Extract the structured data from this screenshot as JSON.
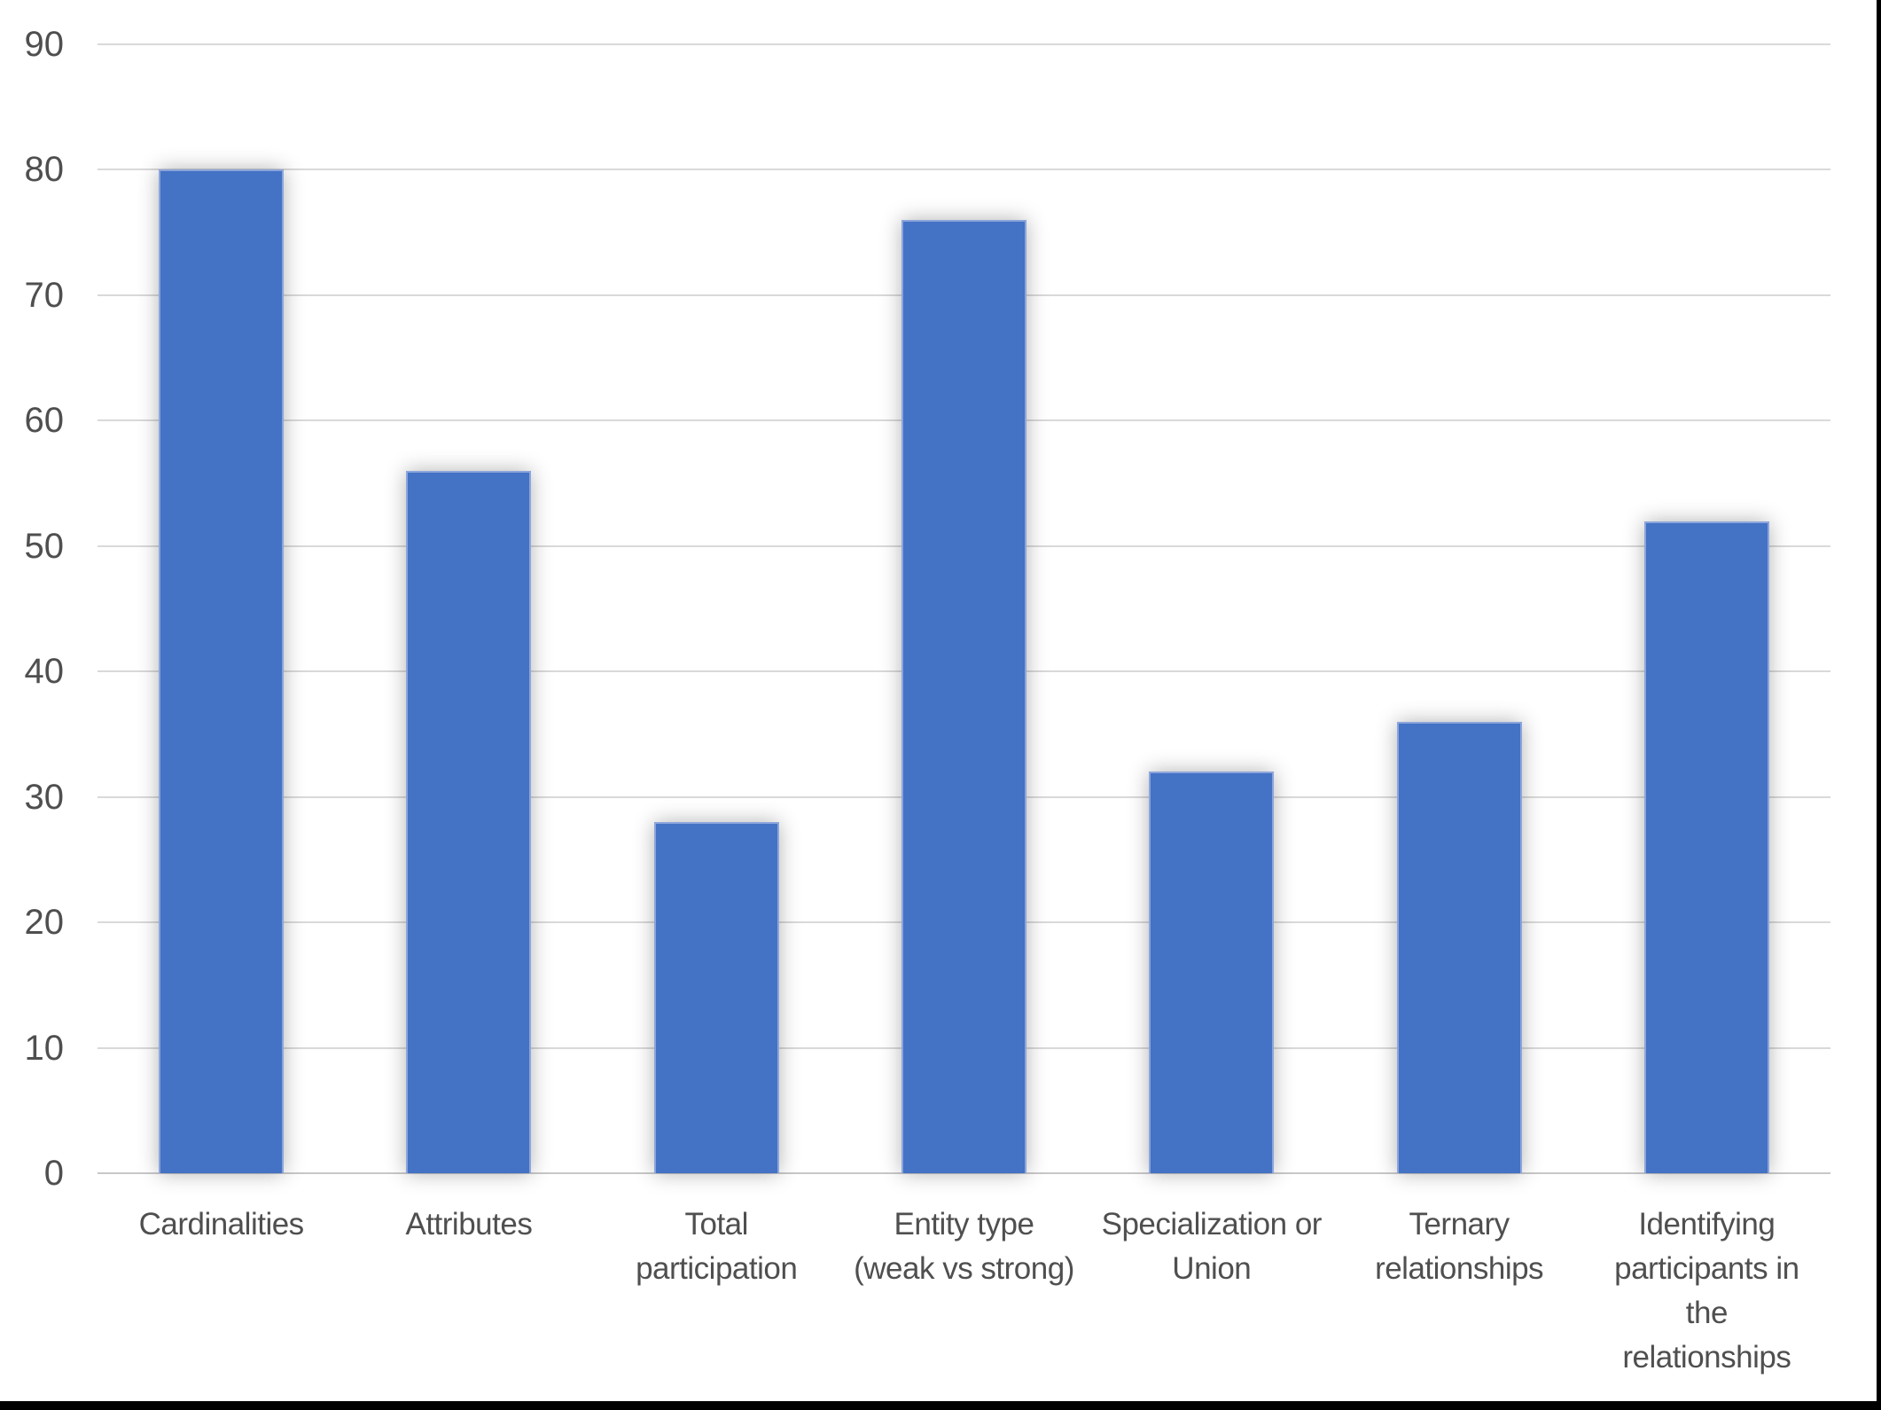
{
  "chart_data": {
    "type": "bar",
    "title": "",
    "xlabel": "",
    "ylabel": "",
    "categories": [
      "Cardinalities",
      "Attributes",
      "Total participation",
      "Entity type (weak vs strong)",
      "Specialization or Union",
      "Ternary relationships",
      "Identifying participants in the relationships"
    ],
    "category_lines": [
      [
        "Cardinalities"
      ],
      [
        "Attributes"
      ],
      [
        "Total",
        "participation"
      ],
      [
        "Entity type",
        "(weak vs strong)"
      ],
      [
        "Specialization or",
        "Union"
      ],
      [
        "Ternary",
        "relationships"
      ],
      [
        "Identifying",
        "participants in",
        "the",
        "relationships"
      ]
    ],
    "values": [
      80,
      56,
      28,
      76,
      32,
      36,
      52
    ],
    "ylim": [
      0,
      90
    ],
    "yticks": [
      0,
      10,
      20,
      30,
      40,
      50,
      60,
      70,
      80,
      90
    ],
    "grid": true,
    "legend": "none",
    "colors": {
      "bar": "#4472C4",
      "bar_border": "#8CA5DC",
      "gridline": "#D9D9D9",
      "axis_line": "#C8C8C8",
      "tick_label": "#4F4F4F",
      "background": "#FFFFFF",
      "screenshot_frame": "#000000"
    }
  }
}
